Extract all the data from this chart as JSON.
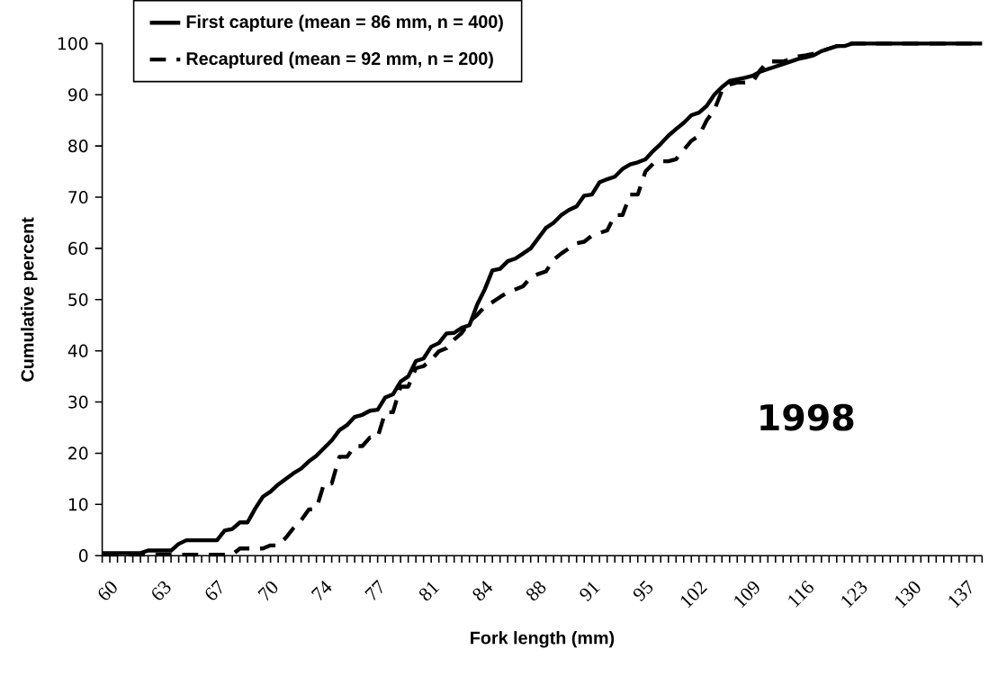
{
  "chart_data": {
    "type": "line",
    "xlabel": "Fork length (mm)",
    "ylabel": "Cumulative percent",
    "categories": [
      "60",
      null,
      null,
      null,
      null,
      null,
      null,
      "63",
      null,
      null,
      null,
      null,
      null,
      null,
      "67",
      null,
      null,
      null,
      null,
      null,
      null,
      "70",
      null,
      null,
      null,
      null,
      null,
      null,
      "74",
      null,
      null,
      null,
      null,
      null,
      null,
      "77",
      null,
      null,
      null,
      null,
      null,
      null,
      "81",
      null,
      null,
      null,
      null,
      null,
      null,
      "84",
      null,
      null,
      null,
      null,
      null,
      null,
      "88",
      null,
      null,
      null,
      null,
      null,
      null,
      "91",
      null,
      null,
      null,
      null,
      null,
      null,
      "95",
      null,
      null,
      null,
      null,
      null,
      null,
      "102",
      null,
      null,
      null,
      null,
      null,
      null,
      "109",
      null,
      null,
      null,
      null,
      null,
      null,
      "116",
      null,
      null,
      null,
      null,
      null,
      null,
      "123",
      null,
      null,
      null,
      null,
      null,
      null,
      "130",
      null,
      null,
      null,
      null,
      null,
      null,
      "137",
      null,
      null,
      null
    ],
    "series": [
      {
        "name": "First capture (mean = 86 mm, n = 400)",
        "color": "#000000",
        "line_style": "solid",
        "values": [
          0.5,
          0.5,
          0.5,
          0.5,
          0.5,
          0.5,
          1,
          1,
          1,
          1,
          2.3,
          3,
          3,
          3,
          3,
          3,
          4.9,
          5.2,
          6.5,
          6.5,
          9.2,
          11.5,
          12.5,
          13.9,
          15,
          16.1,
          17,
          18.4,
          19.5,
          21,
          22.5,
          24.5,
          25.5,
          27.1,
          27.5,
          28.3,
          28.5,
          30.9,
          31.5,
          34,
          35,
          38,
          38.5,
          40.8,
          41.5,
          43.4,
          43.5,
          44.5,
          45,
          49,
          52,
          55.7,
          56,
          57.5,
          58,
          59,
          60,
          62,
          64,
          65,
          66.5,
          67.5,
          68.2,
          70.3,
          70.5,
          72.9,
          73.5,
          74,
          75.5,
          76.4,
          76.8,
          77.4,
          79,
          80.4,
          82,
          83.3,
          84.5,
          86,
          86.5,
          87.8,
          90,
          91.5,
          92.7,
          93,
          93.3,
          93.7,
          94.5,
          95,
          95.5,
          96,
          96.5,
          97,
          97.3,
          97.7,
          98.5,
          99,
          99.5,
          99.5,
          100,
          100,
          100,
          100,
          100,
          100,
          100,
          100,
          100,
          100,
          100,
          100,
          100,
          100,
          100,
          100,
          100,
          100
        ]
      },
      {
        "name": "Recaptured (mean = 92 mm, n = 200)",
        "color": "#000000",
        "line_style": "dashed",
        "values": [
          0.2,
          0.2,
          0.2,
          0.2,
          0.2,
          0.2,
          0.2,
          0.2,
          0.2,
          0.2,
          0.2,
          0.2,
          0.2,
          0.2,
          0.2,
          0.2,
          0.2,
          0.2,
          1.4,
          1.4,
          1.4,
          1.4,
          2,
          2,
          3.5,
          5.4,
          6.9,
          9,
          9.2,
          14.1,
          14.1,
          19.3,
          19.3,
          21.4,
          21.4,
          23.1,
          23.1,
          28,
          28,
          33,
          33,
          36.6,
          37,
          38.2,
          39.9,
          40.5,
          42.2,
          43.5,
          45.7,
          47,
          48.6,
          49.5,
          50.5,
          51.4,
          52,
          52.6,
          54.3,
          55,
          55.5,
          57.8,
          59,
          60,
          61,
          61.3,
          62.5,
          63,
          63.5,
          66.5,
          66.5,
          70.5,
          70.5,
          75,
          76.5,
          77,
          77,
          77.4,
          79.2,
          81,
          82,
          85,
          87,
          90.8,
          92,
          92.4,
          92.4,
          92.5,
          94.8,
          96.5,
          96.5,
          96.5,
          97,
          97.5,
          97.7,
          98,
          98.5,
          99,
          99.5,
          99.5,
          100,
          100,
          100,
          100,
          100,
          100,
          100,
          100,
          100,
          100,
          100,
          100,
          100,
          100,
          100,
          100,
          100,
          100
        ]
      }
    ],
    "ylim": [
      0,
      100
    ],
    "yticks": [
      0,
      10,
      20,
      30,
      40,
      50,
      60,
      70,
      80,
      90,
      100
    ],
    "legend": "top left",
    "annotations": [
      "1998"
    ]
  }
}
